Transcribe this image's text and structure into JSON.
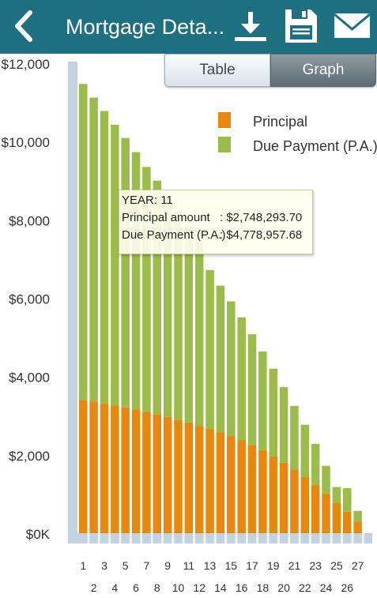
{
  "header": {
    "title": "Mortgage Deta...",
    "back_icon": "chevron-left-icon",
    "download_icon": "download-icon",
    "save_icon": "floppy-disk-icon",
    "mail_icon": "envelope-icon",
    "bar_color": "#1e7080"
  },
  "view_toggle": {
    "table_label": "Table",
    "graph_label": "Graph",
    "selected": "Graph"
  },
  "tooltip": {
    "year_label": "YEAR",
    "year_value": "11",
    "principal_label": "Principal amount",
    "principal_value": "$2,748,293.70",
    "due_label": "Due Payment (P.A.)",
    "due_value": "$4,778,957.68"
  },
  "chart_data": {
    "type": "bar",
    "stacked": true,
    "ylim": [
      0,
      12000
    ],
    "y_ticks": [
      0,
      2000,
      4000,
      6000,
      8000,
      10000,
      12000
    ],
    "y_tick_labels": [
      "$0K",
      "$2,000",
      "$4,000",
      "$6,000",
      "$8,000",
      "$10,000",
      "$12,000"
    ],
    "categories": [
      "1",
      "2",
      "3",
      "4",
      "5",
      "6",
      "7",
      "8",
      "9",
      "10",
      "11",
      "12",
      "13",
      "14",
      "15",
      "16",
      "17",
      "18",
      "19",
      "20",
      "21",
      "22",
      "23",
      "24",
      "25",
      "26",
      "27"
    ],
    "legend_position": "top-right",
    "series": [
      {
        "name": "Principal",
        "color": "#e8870e",
        "values": [
          3400,
          3360,
          3310,
          3260,
          3210,
          3160,
          3100,
          3040,
          2970,
          2900,
          2830,
          2750,
          2670,
          2580,
          2480,
          2370,
          2250,
          2120,
          1970,
          1800,
          1630,
          1440,
          1230,
          1010,
          780,
          550,
          300
        ]
      },
      {
        "name": "Due Payment (P.A.)",
        "color": "#9bbb4a",
        "values": [
          8070,
          7760,
          7470,
          7170,
          6880,
          6570,
          6250,
          5960,
          5610,
          5310,
          5000,
          4700,
          4050,
          3740,
          3440,
          3140,
          2830,
          2520,
          2230,
          1930,
          1620,
          1330,
          1050,
          710,
          400,
          600,
          270
        ]
      }
    ],
    "track_color": "#c3d2df"
  }
}
